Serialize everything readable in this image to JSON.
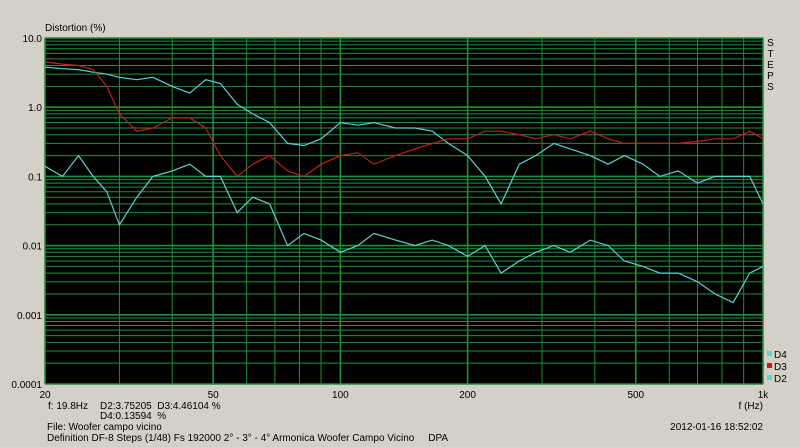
{
  "chart_data": {
    "type": "line",
    "title": "Distortion (%)",
    "x_label": "f (Hz)",
    "side_label": "STEPS",
    "cursor": {
      "frequency": "f: 19.8Hz",
      "line1": "D2:3.75205  D3:4.46104 %",
      "line2": "D4:0.13594  %"
    },
    "footer": {
      "file": "File: Woofer campo vicino",
      "definition": "Definition DF-8 Steps (1/48) Fs 192000 2° - 3° - 4° Armonica Woofer Campo Vicino     DPA",
      "timestamp": "2012-01-16 18:52:02"
    },
    "log_x": true,
    "log_y": true,
    "grid": true,
    "background": "#000000",
    "grid_color": "#1f8f3a",
    "xlim": [
      20,
      1000
    ],
    "ylim": [
      0.0001,
      10
    ],
    "xticks": [
      20,
      50,
      100,
      200,
      500,
      {
        "value": 1000,
        "label": "1k"
      }
    ],
    "xminorticks": [
      30,
      40,
      60,
      70,
      80,
      90,
      300,
      400,
      600,
      700,
      800,
      900
    ],
    "yticks": [
      {
        "value": 10,
        "label": "10.0"
      },
      {
        "value": 1,
        "label": "1.0"
      },
      0.1,
      0.01,
      0.001,
      0.0001
    ],
    "yminorticks": [
      0.0002,
      0.0003,
      0.0004,
      0.0005,
      0.0006,
      0.0007,
      0.0008,
      0.0009,
      0.002,
      0.003,
      0.004,
      0.005,
      0.006,
      0.007,
      0.008,
      0.009,
      0.02,
      0.03,
      0.04,
      0.05,
      0.06,
      0.07,
      0.08,
      0.09,
      0.2,
      0.3,
      0.4,
      0.5,
      0.6,
      0.7,
      0.8,
      0.9,
      2,
      3,
      4,
      5,
      6,
      7,
      8,
      9
    ],
    "x": [
      20,
      22,
      24,
      26,
      28,
      30,
      33,
      36,
      40,
      44,
      48,
      52,
      57,
      62,
      68,
      75,
      82,
      90,
      100,
      110,
      120,
      135,
      150,
      165,
      180,
      200,
      220,
      240,
      265,
      290,
      320,
      350,
      390,
      430,
      470,
      520,
      570,
      630,
      700,
      770,
      850,
      930,
      1000
    ],
    "series": [
      {
        "name": "D2",
        "color": "#5fd0d0",
        "values": [
          3.8,
          3.6,
          3.5,
          3.2,
          3.0,
          2.7,
          2.5,
          2.7,
          2.0,
          1.6,
          2.5,
          2.2,
          1.1,
          0.8,
          0.6,
          0.3,
          0.28,
          0.35,
          0.6,
          0.55,
          0.6,
          0.5,
          0.5,
          0.45,
          0.3,
          0.2,
          0.1,
          0.04,
          0.15,
          0.2,
          0.3,
          0.25,
          0.2,
          0.15,
          0.2,
          0.15,
          0.1,
          0.12,
          0.08,
          0.1,
          0.1,
          0.1,
          0.04
        ]
      },
      {
        "name": "D3",
        "color": "#c0201c",
        "values": [
          4.5,
          4.2,
          4.0,
          3.5,
          2.0,
          0.8,
          0.45,
          0.5,
          0.7,
          0.7,
          0.5,
          0.2,
          0.1,
          0.15,
          0.2,
          0.12,
          0.1,
          0.15,
          0.2,
          0.22,
          0.15,
          0.2,
          0.25,
          0.3,
          0.35,
          0.35,
          0.45,
          0.45,
          0.4,
          0.35,
          0.4,
          0.35,
          0.45,
          0.35,
          0.3,
          0.3,
          0.3,
          0.3,
          0.32,
          0.35,
          0.35,
          0.45,
          0.35
        ]
      },
      {
        "name": "D4",
        "color": "#5fd0d0",
        "values": [
          0.14,
          0.1,
          0.2,
          0.1,
          0.06,
          0.02,
          0.05,
          0.1,
          0.12,
          0.15,
          0.1,
          0.1,
          0.03,
          0.05,
          0.04,
          0.01,
          0.015,
          0.012,
          0.008,
          0.01,
          0.015,
          0.012,
          0.01,
          0.012,
          0.01,
          0.007,
          0.01,
          0.004,
          0.006,
          0.008,
          0.01,
          0.008,
          0.012,
          0.01,
          0.006,
          0.005,
          0.004,
          0.004,
          0.003,
          0.002,
          0.0015,
          0.004,
          0.005
        ]
      }
    ]
  }
}
